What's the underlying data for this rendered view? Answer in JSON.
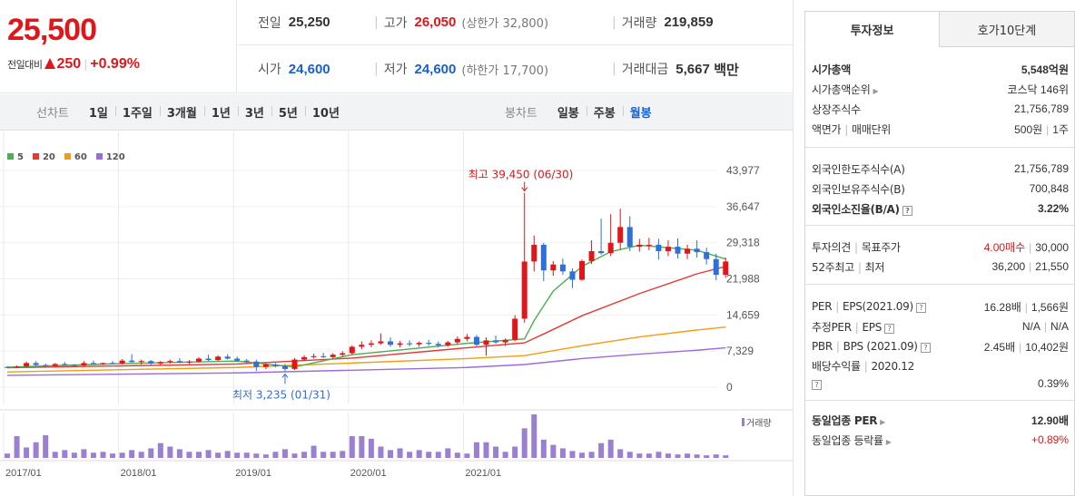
{
  "quote": {
    "current_price": "25,500",
    "change_label": "전일대비",
    "change_amount": "250",
    "change_rate": "+0.99%"
  },
  "summary": {
    "prev_close_label": "전일",
    "prev_close": "25,250",
    "high_label": "고가",
    "high": "26,050",
    "upper_limit": "(상한가 32,800)",
    "volume_label": "거래량",
    "volume": "219,859",
    "open_label": "시가",
    "open": "24,600",
    "low_label": "저가",
    "low": "24,600",
    "lower_limit": "(하한가 17,700)",
    "amount_label": "거래대금",
    "amount": "5,667",
    "amount_unit": "백만"
  },
  "period_bar": {
    "line_label": "선차트",
    "line_items": [
      "1일",
      "1주일",
      "3개월",
      "1년",
      "3년",
      "5년",
      "10년"
    ],
    "candle_label": "봉차트",
    "candle_items": [
      "일봉",
      "주봉",
      "월봉"
    ],
    "candle_selected": 2
  },
  "chart_data": {
    "type": "candlestick",
    "legend": [
      {
        "name": "5",
        "color": "#4caf50"
      },
      {
        "name": "20",
        "color": "#e53935"
      },
      {
        "name": "60",
        "color": "#f39c12"
      },
      {
        "name": "120",
        "color": "#9c6ade"
      }
    ],
    "y_ticks": [
      "43,977",
      "36,647",
      "29,318",
      "21,988",
      "14,659",
      "7,329",
      "0"
    ],
    "ylim": [
      0,
      43977
    ],
    "x_labels": [
      "2017/01",
      "2018/01",
      "2019/01",
      "2020/01",
      "2021/01"
    ],
    "high_annotation": "최고 39,450 (06/30)",
    "low_annotation": "최저 3,235 (01/31)",
    "volume_label": "거래량",
    "candles": [
      [
        4100,
        4300,
        3900,
        4050
      ],
      [
        4050,
        4400,
        3950,
        4200
      ],
      [
        4200,
        5200,
        4000,
        4900
      ],
      [
        4900,
        5300,
        4300,
        4500
      ],
      [
        4500,
        4800,
        4100,
        4300
      ],
      [
        4300,
        4900,
        4200,
        4700
      ],
      [
        4700,
        5100,
        4400,
        4500
      ],
      [
        4500,
        4700,
        4200,
        4400
      ],
      [
        4400,
        5300,
        4300,
        4900
      ],
      [
        4900,
        5400,
        4600,
        4700
      ],
      [
        4700,
        5000,
        4500,
        4900
      ],
      [
        4900,
        5300,
        4700,
        4800
      ],
      [
        4800,
        5700,
        4600,
        5400
      ],
      [
        5400,
        6700,
        5000,
        5100
      ],
      [
        5100,
        5600,
        4600,
        5300
      ],
      [
        5300,
        5500,
        4500,
        4800
      ],
      [
        4800,
        5300,
        4500,
        5100
      ],
      [
        5100,
        5600,
        4800,
        5300
      ],
      [
        5300,
        5900,
        4900,
        5000
      ],
      [
        5000,
        5500,
        4700,
        5200
      ],
      [
        5200,
        6100,
        5000,
        5800
      ],
      [
        5800,
        6600,
        5300,
        5500
      ],
      [
        5500,
        6500,
        5300,
        6200
      ],
      [
        6200,
        6700,
        5600,
        5800
      ],
      [
        5800,
        6200,
        5100,
        5400
      ],
      [
        5400,
        5700,
        4900,
        5200
      ],
      [
        5200,
        5600,
        3300,
        4100
      ],
      [
        4100,
        4800,
        3700,
        4600
      ],
      [
        4600,
        4900,
        4000,
        4300
      ],
      [
        4300,
        4700,
        3235,
        3700
      ],
      [
        3700,
        5900,
        3500,
        5600
      ],
      [
        5600,
        6500,
        5300,
        6100
      ],
      [
        6100,
        6800,
        5800,
        6300
      ],
      [
        6300,
        7000,
        5900,
        6100
      ],
      [
        6100,
        6900,
        5800,
        6600
      ],
      [
        6600,
        7300,
        6200,
        6900
      ],
      [
        6900,
        8500,
        6600,
        8200
      ],
      [
        8200,
        9300,
        7700,
        8600
      ],
      [
        8600,
        9500,
        8100,
        8900
      ],
      [
        8900,
        10900,
        8600,
        9300
      ],
      [
        9300,
        10100,
        8200,
        8600
      ],
      [
        8600,
        9400,
        8100,
        8900
      ],
      [
        8900,
        9500,
        8300,
        8700
      ],
      [
        8700,
        9300,
        8200,
        9000
      ],
      [
        9000,
        9600,
        8400,
        8800
      ],
      [
        8800,
        9300,
        8100,
        8500
      ],
      [
        8500,
        9400,
        8200,
        9100
      ],
      [
        9100,
        10300,
        8700,
        9800
      ],
      [
        9800,
        10800,
        9300,
        10200
      ],
      [
        10200,
        10600,
        8300,
        8600
      ],
      [
        8600,
        10100,
        6400,
        9500
      ],
      [
        9500,
        10500,
        8800,
        9100
      ],
      [
        9100,
        9900,
        8400,
        9600
      ],
      [
        9600,
        14600,
        9300,
        13900
      ],
      [
        13900,
        39450,
        13100,
        25500
      ],
      [
        25500,
        30800,
        23500,
        28900
      ],
      [
        28900,
        29300,
        21500,
        23700
      ],
      [
        23700,
        25600,
        22600,
        24900
      ],
      [
        24900,
        26100,
        22800,
        23500
      ],
      [
        23500,
        24100,
        20100,
        21800
      ],
      [
        21800,
        25900,
        21600,
        25600
      ],
      [
        25600,
        29800,
        25000,
        27600
      ],
      [
        27600,
        34200,
        26900,
        27200
      ],
      [
        27200,
        35100,
        26600,
        29300
      ],
      [
        29300,
        36200,
        27900,
        32500
      ],
      [
        32500,
        34700,
        27600,
        28500
      ],
      [
        28500,
        30100,
        27500,
        28900
      ],
      [
        28900,
        30300,
        27800,
        28900
      ],
      [
        28900,
        30100,
        25900,
        27600
      ],
      [
        27600,
        29800,
        26600,
        28500
      ],
      [
        28500,
        30200,
        26100,
        27100
      ],
      [
        27100,
        28900,
        26000,
        28100
      ],
      [
        28100,
        29800,
        26300,
        27400
      ],
      [
        27400,
        28300,
        24900,
        26000
      ],
      [
        26000,
        27100,
        21700,
        22800
      ],
      [
        22800,
        26300,
        22200,
        25500
      ]
    ],
    "ma_lines": [
      {
        "name": "5",
        "color": "#4caf50",
        "points": [
          [
            0,
            4050
          ],
          [
            12,
            4800
          ],
          [
            24,
            5300
          ],
          [
            30,
            4100
          ],
          [
            36,
            6600
          ],
          [
            48,
            8900
          ],
          [
            54,
            9800
          ],
          [
            55,
            13500
          ],
          [
            57,
            19500
          ],
          [
            60,
            24500
          ],
          [
            63,
            27500
          ],
          [
            66,
            28800
          ],
          [
            72,
            27800
          ],
          [
            75,
            26000
          ]
        ]
      },
      {
        "name": "20",
        "color": "#e53935",
        "points": [
          [
            0,
            3950
          ],
          [
            24,
            4700
          ],
          [
            36,
            5900
          ],
          [
            48,
            8000
          ],
          [
            54,
            9000
          ],
          [
            56,
            10800
          ],
          [
            60,
            14500
          ],
          [
            66,
            19000
          ],
          [
            72,
            23000
          ],
          [
            75,
            24500
          ]
        ]
      },
      {
        "name": "60",
        "color": "#f39c12",
        "points": [
          [
            0,
            3100
          ],
          [
            24,
            4000
          ],
          [
            48,
            5800
          ],
          [
            54,
            6400
          ],
          [
            60,
            8400
          ],
          [
            66,
            10200
          ],
          [
            72,
            11600
          ],
          [
            75,
            12200
          ]
        ]
      },
      {
        "name": "120",
        "color": "#9c6ade",
        "points": [
          [
            0,
            2400
          ],
          [
            24,
            2900
          ],
          [
            48,
            4000
          ],
          [
            54,
            4600
          ],
          [
            60,
            5800
          ],
          [
            66,
            6700
          ],
          [
            72,
            7500
          ],
          [
            75,
            8000
          ]
        ]
      }
    ],
    "volumes": [
      5,
      25,
      12,
      18,
      26,
      7,
      9,
      6,
      10,
      6,
      7,
      5,
      6,
      9,
      7,
      11,
      17,
      13,
      10,
      7,
      7,
      9,
      6,
      8,
      6,
      6,
      5,
      4,
      7,
      10,
      5,
      7,
      14,
      7,
      7,
      8,
      25,
      25,
      22,
      13,
      9,
      11,
      7,
      9,
      7,
      7,
      11,
      6,
      5,
      18,
      18,
      13,
      7,
      13,
      34,
      50,
      21,
      15,
      11,
      8,
      6,
      7,
      17,
      21,
      10,
      7,
      5,
      5,
      7,
      5,
      4,
      5,
      4,
      3,
      4,
      3
    ]
  },
  "right_panel": {
    "tabs": [
      "투자정보",
      "호가10단계"
    ],
    "market_cap_label": "시가총액",
    "market_cap": "5,548억원",
    "market_cap_rank_label": "시가총액순위",
    "market_cap_rank": "코스닥 146위",
    "shares_label": "상장주식수",
    "shares": "21,756,789",
    "par_label": "액면가",
    "trade_unit_label": "매매단위",
    "par": "500원",
    "trade_unit": "1주",
    "foreign_limit_label": "외국인한도주식수(A)",
    "foreign_limit": "21,756,789",
    "foreign_hold_label": "외국인보유주식수(B)",
    "foreign_hold": "700,848",
    "foreign_rate_label": "외국인소진율(B/A)",
    "foreign_rate": "3.22%",
    "opinion_label": "투자의견",
    "target_label": "목표주가",
    "opinion": "4.00매수",
    "target": "30,000",
    "w52_high_label": "52주최고",
    "w52_low_label": "최저",
    "w52_high": "36,200",
    "w52_low": "21,550",
    "per_label": "PER",
    "eps_label": "EPS(2021.09)",
    "per": "16.28배",
    "eps": "1,566원",
    "est_per_label": "추정PER",
    "est_eps_label": "EPS",
    "est_per": "N/A",
    "est_eps": "N/A",
    "pbr_label": "PBR",
    "bps_label": "BPS (2021.09)",
    "pbr": "2.45배",
    "bps": "10,402원",
    "div_label": "배당수익률",
    "div_date": "2020.12",
    "div": "0.39%",
    "sector_per_label": "동일업종 PER",
    "sector_per": "12.90배",
    "sector_rate_label": "동일업종 등락률",
    "sector_rate": "+0.89%"
  }
}
